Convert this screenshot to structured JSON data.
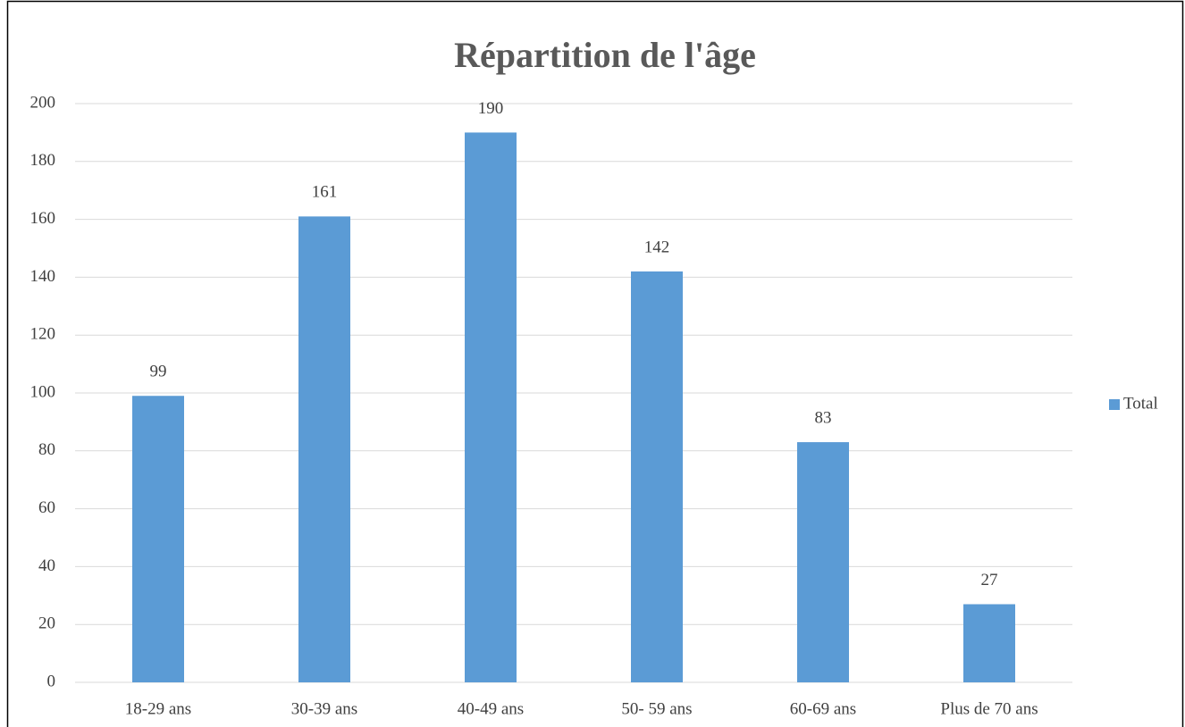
{
  "chart_data": {
    "type": "bar",
    "title": "Répartition de l'âge",
    "categories": [
      "18-29 ans",
      "30-39 ans",
      "40-49 ans",
      "50- 59 ans",
      "60-69 ans",
      "Plus de 70 ans"
    ],
    "series": [
      {
        "name": "Total",
        "color": "#5b9bd5",
        "values": [
          99,
          161,
          190,
          142,
          83,
          27
        ]
      }
    ],
    "ylim": [
      0,
      200
    ],
    "yticks": [
      0,
      20,
      40,
      60,
      80,
      100,
      120,
      140,
      160,
      180,
      200
    ],
    "grid": true,
    "legend": "right"
  }
}
